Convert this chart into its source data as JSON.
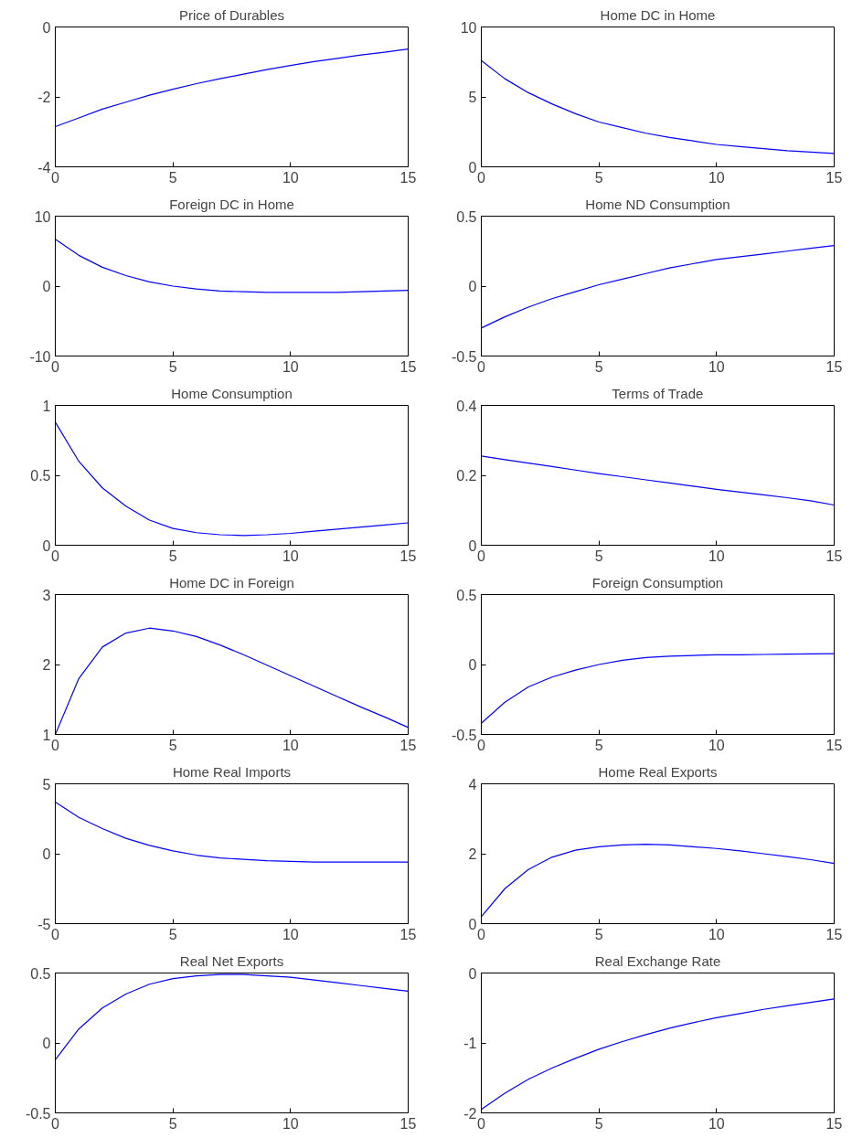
{
  "chart_data": [
    {
      "type": "line",
      "title": "Price of Durables",
      "x": [
        0,
        1,
        2,
        3,
        4,
        5,
        6,
        7,
        8,
        9,
        10,
        11,
        12,
        13,
        14,
        15
      ],
      "series": [
        {
          "color": "#0000ff",
          "values": [
            -2.85,
            -2.6,
            -2.35,
            -2.15,
            -1.95,
            -1.78,
            -1.62,
            -1.48,
            -1.35,
            -1.22,
            -1.1,
            -0.99,
            -0.9,
            -0.8,
            -0.72,
            -0.63
          ]
        }
      ],
      "xlim": [
        0,
        15
      ],
      "xticks": [
        0,
        5,
        10,
        15
      ],
      "ylim": [
        -4,
        0
      ],
      "yticks": [
        -4,
        -2,
        0
      ]
    },
    {
      "type": "line",
      "title": "Home DC in Home",
      "x": [
        0,
        1,
        2,
        3,
        4,
        5,
        6,
        7,
        8,
        9,
        10,
        11,
        12,
        13,
        14,
        15
      ],
      "series": [
        {
          "color": "#0000ff",
          "values": [
            7.6,
            6.3,
            5.3,
            4.5,
            3.8,
            3.2,
            2.8,
            2.4,
            2.1,
            1.85,
            1.6,
            1.45,
            1.3,
            1.15,
            1.05,
            0.95
          ]
        }
      ],
      "xlim": [
        0,
        15
      ],
      "xticks": [
        0,
        5,
        10,
        15
      ],
      "ylim": [
        0,
        10
      ],
      "yticks": [
        0,
        5,
        10
      ]
    },
    {
      "type": "line",
      "title": "Foreign DC in Home",
      "x": [
        0,
        1,
        2,
        3,
        4,
        5,
        6,
        7,
        8,
        9,
        10,
        11,
        12,
        13,
        14,
        15
      ],
      "series": [
        {
          "color": "#0000ff",
          "values": [
            6.7,
            4.4,
            2.7,
            1.5,
            0.6,
            0.0,
            -0.4,
            -0.7,
            -0.8,
            -0.9,
            -0.9,
            -0.9,
            -0.9,
            -0.8,
            -0.7,
            -0.6
          ]
        }
      ],
      "xlim": [
        0,
        15
      ],
      "xticks": [
        0,
        5,
        10,
        15
      ],
      "ylim": [
        -10,
        10
      ],
      "yticks": [
        -10,
        0,
        10
      ]
    },
    {
      "type": "line",
      "title": "Home ND Consumption",
      "x": [
        0,
        1,
        2,
        3,
        4,
        5,
        6,
        7,
        8,
        9,
        10,
        11,
        12,
        13,
        14,
        15
      ],
      "series": [
        {
          "color": "#0000ff",
          "values": [
            -0.3,
            -0.22,
            -0.15,
            -0.09,
            -0.04,
            0.01,
            0.05,
            0.09,
            0.13,
            0.16,
            0.19,
            0.21,
            0.23,
            0.25,
            0.27,
            0.29
          ]
        }
      ],
      "xlim": [
        0,
        15
      ],
      "xticks": [
        0,
        5,
        10,
        15
      ],
      "ylim": [
        -0.5,
        0.5
      ],
      "yticks": [
        -0.5,
        0,
        0.5
      ]
    },
    {
      "type": "line",
      "title": "Home Consumption",
      "x": [
        0,
        1,
        2,
        3,
        4,
        5,
        6,
        7,
        8,
        9,
        10,
        11,
        12,
        13,
        14,
        15
      ],
      "series": [
        {
          "color": "#0000ff",
          "values": [
            0.88,
            0.6,
            0.41,
            0.28,
            0.18,
            0.12,
            0.09,
            0.075,
            0.07,
            0.075,
            0.085,
            0.1,
            0.115,
            0.13,
            0.145,
            0.16
          ]
        }
      ],
      "xlim": [
        0,
        15
      ],
      "xticks": [
        0,
        5,
        10,
        15
      ],
      "ylim": [
        0,
        1
      ],
      "yticks": [
        0,
        0.5,
        1
      ]
    },
    {
      "type": "line",
      "title": "Terms of Trade",
      "x": [
        0,
        1,
        2,
        3,
        4,
        5,
        6,
        7,
        8,
        9,
        10,
        11,
        12,
        13,
        14,
        15
      ],
      "series": [
        {
          "color": "#0000ff",
          "values": [
            0.255,
            0.245,
            0.235,
            0.225,
            0.215,
            0.205,
            0.196,
            0.187,
            0.178,
            0.169,
            0.16,
            0.152,
            0.144,
            0.136,
            0.127,
            0.115
          ]
        }
      ],
      "xlim": [
        0,
        15
      ],
      "xticks": [
        0,
        5,
        10,
        15
      ],
      "ylim": [
        0,
        0.4
      ],
      "yticks": [
        0,
        0.2,
        0.4
      ]
    },
    {
      "type": "line",
      "title": "Home DC in Foreign",
      "x": [
        0,
        1,
        2,
        3,
        4,
        5,
        6,
        7,
        8,
        9,
        10,
        11,
        12,
        13,
        14,
        15
      ],
      "series": [
        {
          "color": "#0000ff",
          "values": [
            1.0,
            1.8,
            2.25,
            2.45,
            2.52,
            2.48,
            2.4,
            2.28,
            2.14,
            1.99,
            1.84,
            1.69,
            1.54,
            1.39,
            1.25,
            1.1
          ]
        }
      ],
      "xlim": [
        0,
        15
      ],
      "xticks": [
        0,
        5,
        10,
        15
      ],
      "ylim": [
        1,
        3
      ],
      "yticks": [
        1,
        2,
        3
      ]
    },
    {
      "type": "line",
      "title": "Foreign Consumption",
      "x": [
        0,
        1,
        2,
        3,
        4,
        5,
        6,
        7,
        8,
        9,
        10,
        11,
        12,
        13,
        14,
        15
      ],
      "series": [
        {
          "color": "#0000ff",
          "values": [
            -0.42,
            -0.27,
            -0.16,
            -0.09,
            -0.04,
            0.0,
            0.03,
            0.05,
            0.06,
            0.065,
            0.07,
            0.07,
            0.072,
            0.074,
            0.076,
            0.078
          ]
        }
      ],
      "xlim": [
        0,
        15
      ],
      "xticks": [
        0,
        5,
        10,
        15
      ],
      "ylim": [
        -0.5,
        0.5
      ],
      "yticks": [
        -0.5,
        0,
        0.5
      ]
    },
    {
      "type": "line",
      "title": "Home Real Imports",
      "x": [
        0,
        1,
        2,
        3,
        4,
        5,
        6,
        7,
        8,
        9,
        10,
        11,
        12,
        13,
        14,
        15
      ],
      "series": [
        {
          "color": "#0000ff",
          "values": [
            3.7,
            2.6,
            1.8,
            1.1,
            0.6,
            0.2,
            -0.1,
            -0.3,
            -0.4,
            -0.5,
            -0.55,
            -0.6,
            -0.6,
            -0.6,
            -0.6,
            -0.6
          ]
        }
      ],
      "xlim": [
        0,
        15
      ],
      "xticks": [
        0,
        5,
        10,
        15
      ],
      "ylim": [
        -5,
        5
      ],
      "yticks": [
        -5,
        0,
        5
      ]
    },
    {
      "type": "line",
      "title": "Home Real Exports",
      "x": [
        0,
        1,
        2,
        3,
        4,
        5,
        6,
        7,
        8,
        9,
        10,
        11,
        12,
        13,
        14,
        15
      ],
      "series": [
        {
          "color": "#0000ff",
          "values": [
            0.2,
            1.0,
            1.55,
            1.9,
            2.1,
            2.2,
            2.25,
            2.27,
            2.25,
            2.2,
            2.15,
            2.08,
            2.0,
            1.92,
            1.83,
            1.72
          ]
        }
      ],
      "xlim": [
        0,
        15
      ],
      "xticks": [
        0,
        5,
        10,
        15
      ],
      "ylim": [
        0,
        4
      ],
      "yticks": [
        0,
        2,
        4
      ]
    },
    {
      "type": "line",
      "title": "Real Net Exports",
      "x": [
        0,
        1,
        2,
        3,
        4,
        5,
        6,
        7,
        8,
        9,
        10,
        11,
        12,
        13,
        14,
        15
      ],
      "series": [
        {
          "color": "#0000ff",
          "values": [
            -0.12,
            0.1,
            0.25,
            0.35,
            0.42,
            0.46,
            0.48,
            0.49,
            0.49,
            0.48,
            0.47,
            0.45,
            0.43,
            0.41,
            0.39,
            0.37
          ]
        }
      ],
      "xlim": [
        0,
        15
      ],
      "xticks": [
        0,
        5,
        10,
        15
      ],
      "ylim": [
        -0.5,
        0.5
      ],
      "yticks": [
        -0.5,
        0,
        0.5
      ]
    },
    {
      "type": "line",
      "title": "Real Exchange Rate",
      "x": [
        0,
        1,
        2,
        3,
        4,
        5,
        6,
        7,
        8,
        9,
        10,
        11,
        12,
        13,
        14,
        15
      ],
      "series": [
        {
          "color": "#0000ff",
          "values": [
            -1.95,
            -1.72,
            -1.52,
            -1.36,
            -1.22,
            -1.09,
            -0.98,
            -0.88,
            -0.79,
            -0.71,
            -0.64,
            -0.58,
            -0.52,
            -0.47,
            -0.42,
            -0.37
          ]
        }
      ],
      "xlim": [
        0,
        15
      ],
      "xticks": [
        0,
        5,
        10,
        15
      ],
      "ylim": [
        -2,
        0
      ],
      "yticks": [
        -2,
        -1,
        0
      ]
    }
  ]
}
